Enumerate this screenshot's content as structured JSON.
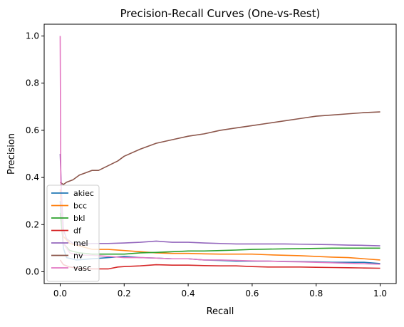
{
  "chart_data": {
    "type": "line",
    "title": "Precision-Recall Curves (One-vs-Rest)",
    "xlabel": "Recall",
    "ylabel": "Precision",
    "xlim": [
      -0.05,
      1.05
    ],
    "ylim": [
      -0.05,
      1.05
    ],
    "xticks": [
      "0.0",
      "0.2",
      "0.4",
      "0.6",
      "0.8",
      "1.0"
    ],
    "yticks": [
      "0.0",
      "0.2",
      "0.4",
      "0.6",
      "0.8",
      "1.0"
    ],
    "grid": false,
    "legend_position": "lower-left",
    "series": [
      {
        "name": "akiec",
        "color": "#1f77b4",
        "x": [
          0.0,
          0.01,
          0.02,
          0.05,
          0.1,
          0.15,
          0.2,
          0.25,
          0.3,
          0.35,
          0.4,
          0.45,
          0.5,
          0.55,
          0.6,
          0.65,
          0.7,
          0.75,
          0.8,
          0.85,
          0.9,
          0.95,
          1.0
        ],
        "y": [
          0.3,
          0.1,
          0.06,
          0.05,
          0.055,
          0.06,
          0.065,
          0.06,
          0.058,
          0.055,
          0.055,
          0.05,
          0.048,
          0.045,
          0.045,
          0.045,
          0.044,
          0.043,
          0.042,
          0.04,
          0.04,
          0.04,
          0.035
        ]
      },
      {
        "name": "bcc",
        "color": "#ff7f0e",
        "x": [
          0.0,
          0.01,
          0.03,
          0.06,
          0.1,
          0.15,
          0.2,
          0.25,
          0.3,
          0.35,
          0.4,
          0.45,
          0.5,
          0.55,
          0.6,
          0.65,
          0.7,
          0.75,
          0.8,
          0.85,
          0.9,
          0.95,
          1.0
        ],
        "y": [
          0.35,
          0.15,
          0.12,
          0.11,
          0.095,
          0.095,
          0.09,
          0.085,
          0.08,
          0.078,
          0.078,
          0.076,
          0.075,
          0.075,
          0.075,
          0.072,
          0.07,
          0.068,
          0.065,
          0.062,
          0.06,
          0.055,
          0.05
        ]
      },
      {
        "name": "bkl",
        "color": "#2ca02c",
        "x": [
          0.0,
          0.01,
          0.03,
          0.06,
          0.1,
          0.15,
          0.2,
          0.25,
          0.3,
          0.35,
          0.4,
          0.45,
          0.5,
          0.55,
          0.6,
          0.65,
          0.7,
          0.75,
          0.8,
          0.85,
          0.9,
          0.95,
          1.0
        ],
        "y": [
          0.25,
          0.12,
          0.09,
          0.08,
          0.075,
          0.075,
          0.075,
          0.08,
          0.082,
          0.085,
          0.088,
          0.088,
          0.09,
          0.092,
          0.095,
          0.096,
          0.097,
          0.098,
          0.099,
          0.1,
          0.1,
          0.1,
          0.1
        ]
      },
      {
        "name": "df",
        "color": "#d62728",
        "x": [
          0.0,
          0.01,
          0.03,
          0.06,
          0.1,
          0.15,
          0.18,
          0.2,
          0.25,
          0.3,
          0.35,
          0.4,
          0.45,
          0.5,
          0.55,
          0.6,
          0.65,
          0.7,
          0.75,
          0.8,
          0.85,
          0.9,
          0.95,
          1.0
        ],
        "y": [
          0.05,
          0.03,
          0.02,
          0.015,
          0.012,
          0.012,
          0.02,
          0.022,
          0.025,
          0.03,
          0.028,
          0.028,
          0.026,
          0.025,
          0.025,
          0.022,
          0.02,
          0.02,
          0.02,
          0.019,
          0.018,
          0.017,
          0.016,
          0.015
        ]
      },
      {
        "name": "mel",
        "color": "#9467bd",
        "x": [
          0.0,
          0.005,
          0.01,
          0.02,
          0.04,
          0.06,
          0.1,
          0.15,
          0.2,
          0.25,
          0.3,
          0.35,
          0.4,
          0.45,
          0.5,
          0.55,
          0.6,
          0.65,
          0.7,
          0.75,
          0.8,
          0.85,
          0.9,
          0.95,
          1.0
        ],
        "y": [
          0.5,
          0.3,
          0.18,
          0.14,
          0.12,
          0.115,
          0.12,
          0.12,
          0.122,
          0.125,
          0.13,
          0.125,
          0.125,
          0.122,
          0.12,
          0.118,
          0.118,
          0.118,
          0.118,
          0.117,
          0.116,
          0.115,
          0.113,
          0.112,
          0.11
        ]
      },
      {
        "name": "nv",
        "color": "#8c564b",
        "x": [
          0.0,
          0.01,
          0.02,
          0.04,
          0.06,
          0.08,
          0.1,
          0.12,
          0.15,
          0.18,
          0.2,
          0.25,
          0.3,
          0.35,
          0.4,
          0.45,
          0.5,
          0.55,
          0.6,
          0.65,
          0.7,
          0.75,
          0.8,
          0.85,
          0.9,
          0.95,
          1.0
        ],
        "y": [
          0.38,
          0.37,
          0.38,
          0.39,
          0.41,
          0.42,
          0.43,
          0.43,
          0.45,
          0.47,
          0.49,
          0.52,
          0.545,
          0.56,
          0.575,
          0.585,
          0.6,
          0.61,
          0.62,
          0.63,
          0.64,
          0.65,
          0.66,
          0.665,
          0.67,
          0.675,
          0.678
        ]
      },
      {
        "name": "vasc",
        "color": "#e377c2",
        "x": [
          0.0,
          0.002,
          0.005,
          0.01,
          0.03,
          0.06,
          0.1,
          0.15,
          0.2,
          0.25,
          0.3,
          0.35,
          0.4,
          0.45,
          0.5,
          0.55,
          0.6,
          0.65,
          0.7,
          0.75,
          0.8,
          0.85,
          0.9,
          0.95,
          1.0
        ],
        "y": [
          1.0,
          0.4,
          0.25,
          0.12,
          0.08,
          0.07,
          0.07,
          0.065,
          0.06,
          0.06,
          0.058,
          0.055,
          0.055,
          0.05,
          0.05,
          0.048,
          0.046,
          0.045,
          0.043,
          0.042,
          0.04,
          0.038,
          0.036,
          0.034,
          0.032
        ]
      }
    ]
  }
}
